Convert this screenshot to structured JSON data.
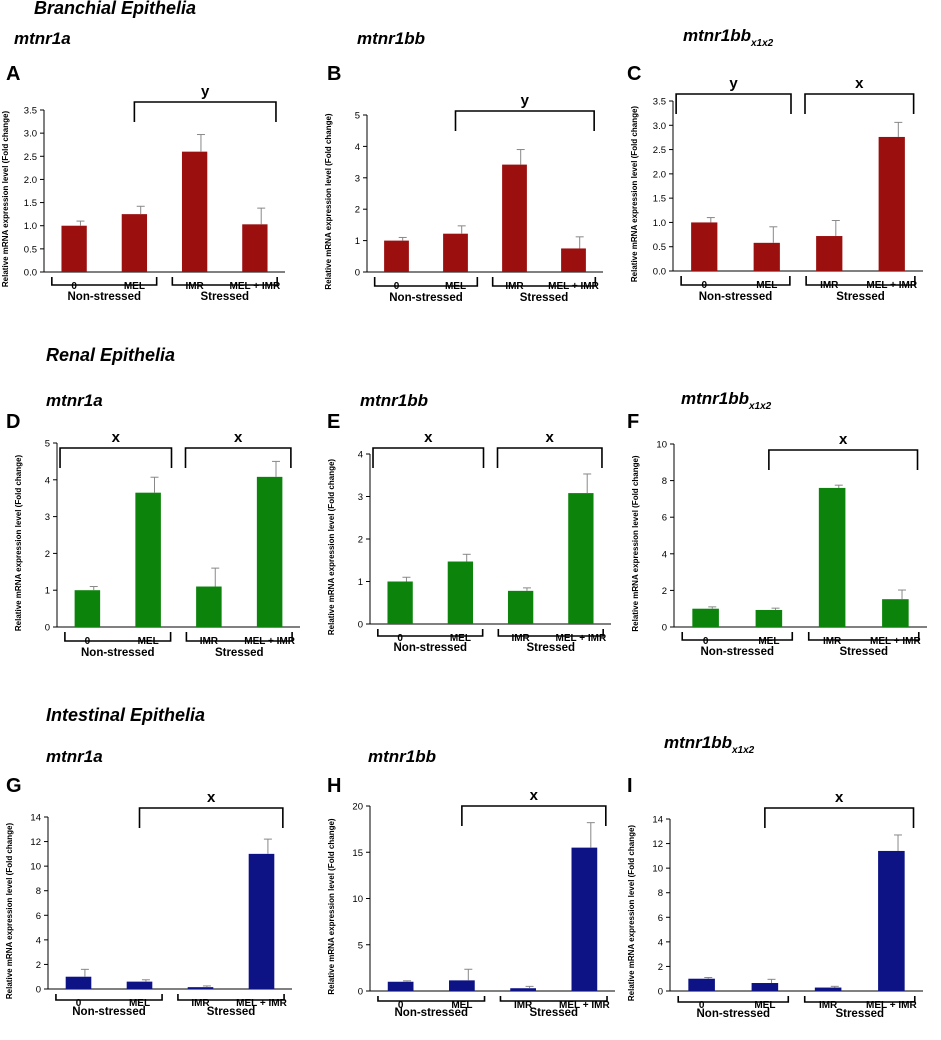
{
  "figure": {
    "sections": [
      {
        "id": "branchial",
        "title": "Branchial Epithelia"
      },
      {
        "id": "renal",
        "title": "Renal Epithelia"
      },
      {
        "id": "intestinal",
        "title": "Intestinal Epithelia"
      }
    ],
    "colors": {
      "branchial": "#9b0f0f",
      "renal": "#0c840c",
      "intestinal": "#0d1385",
      "error_bar": "#888888"
    },
    "group_labels": [
      "Non-stressed",
      "Stressed"
    ]
  },
  "chart_data": [
    {
      "panel": "A",
      "section": "branchial",
      "type": "bar",
      "gene": "mtnr1a",
      "gene_sub": "",
      "title": "mtnr1a",
      "ylabel": "Relative mRNA expression level (Fold change)",
      "xlabel": "",
      "categories": [
        "0",
        "MEL",
        "IMR",
        "MEL + IMR"
      ],
      "values": [
        1.0,
        1.25,
        2.6,
        1.03
      ],
      "errors": [
        0.1,
        0.17,
        0.37,
        0.35
      ],
      "ylim": [
        0,
        3.5
      ],
      "yticks": [
        "0.0",
        "0.5",
        "1.0",
        "1.5",
        "2.0",
        "2.5",
        "3.0",
        "3.5"
      ],
      "groups": [
        "Non-stressed",
        "Stressed"
      ],
      "brackets": [
        {
          "from": 1,
          "to": 3,
          "label": "y"
        }
      ]
    },
    {
      "panel": "B",
      "section": "branchial",
      "type": "bar",
      "gene": "mtnr1bb",
      "gene_sub": "",
      "title": "mtnr1bb",
      "ylabel": "Relative mRNA expression level (Fold change)",
      "xlabel": "",
      "categories": [
        "0",
        "MEL",
        "IMR",
        "MEL + IMR"
      ],
      "values": [
        1.0,
        1.22,
        3.42,
        0.75
      ],
      "errors": [
        0.1,
        0.25,
        0.48,
        0.37
      ],
      "ylim": [
        0,
        5
      ],
      "yticks": [
        "0",
        "1",
        "2",
        "3",
        "4",
        "5"
      ],
      "groups": [
        "Non-stressed",
        "Stressed"
      ],
      "brackets": [
        {
          "from": 1,
          "to": 3,
          "label": "y"
        }
      ]
    },
    {
      "panel": "C",
      "section": "branchial",
      "type": "bar",
      "gene": "mtnr1bb",
      "gene_sub": "x1x2",
      "title": "mtnr1bbx1x2",
      "ylabel": "Relative mRNA expression level (Fold change)",
      "xlabel": "",
      "categories": [
        "0",
        "MEL",
        "IMR",
        "MEL + IMR"
      ],
      "values": [
        1.0,
        0.58,
        0.72,
        2.76
      ],
      "errors": [
        0.1,
        0.33,
        0.32,
        0.3
      ],
      "ylim": [
        0,
        3.5
      ],
      "yticks": [
        "0.0",
        "0.5",
        "1.0",
        "1.5",
        "2.0",
        "2.5",
        "3.0",
        "3.5"
      ],
      "groups": [
        "Non-stressed",
        "Stressed"
      ],
      "brackets": [
        {
          "from": 0,
          "to": 1,
          "label": "y"
        },
        {
          "from": 1,
          "to": 3,
          "label": "x"
        }
      ]
    },
    {
      "panel": "D",
      "section": "renal",
      "type": "bar",
      "gene": "mtnr1a",
      "gene_sub": "",
      "title": "mtnr1a",
      "ylabel": "Relative mRNA expression level (Fold change)",
      "xlabel": "",
      "categories": [
        "0",
        "MEL",
        "IMR",
        "MEL + IMR"
      ],
      "values": [
        1.0,
        3.65,
        1.1,
        4.08
      ],
      "errors": [
        0.1,
        0.42,
        0.5,
        0.42
      ],
      "ylim": [
        0,
        5
      ],
      "yticks": [
        "0",
        "1",
        "2",
        "3",
        "4",
        "5"
      ],
      "groups": [
        "Non-stressed",
        "Stressed"
      ],
      "brackets": [
        {
          "from": 0,
          "to": 1,
          "label": "x"
        },
        {
          "from": 1,
          "to": 3,
          "label": "x"
        }
      ]
    },
    {
      "panel": "E",
      "section": "renal",
      "type": "bar",
      "gene": "mtnr1bb",
      "gene_sub": "",
      "title": "mtnr1bb",
      "ylabel": "Relative mRNA expression level (Fold change)",
      "xlabel": "",
      "categories": [
        "0",
        "MEL",
        "IMR",
        "MEL + IMR"
      ],
      "values": [
        1.0,
        1.47,
        0.78,
        3.08
      ],
      "errors": [
        0.1,
        0.17,
        0.07,
        0.45
      ],
      "ylim": [
        0,
        4
      ],
      "yticks": [
        "0",
        "1",
        "2",
        "3",
        "4"
      ],
      "groups": [
        "Non-stressed",
        "Stressed"
      ],
      "brackets": [
        {
          "from": 0,
          "to": 1,
          "label": "x"
        },
        {
          "from": 1,
          "to": 3,
          "label": "x"
        }
      ]
    },
    {
      "panel": "F",
      "section": "renal",
      "type": "bar",
      "gene": "mtnr1bb",
      "gene_sub": "x1x2",
      "title": "mtnr1bbx1x2",
      "ylabel": "Relative mRNA expression level (Fold change)",
      "xlabel": "",
      "categories": [
        "0",
        "MEL",
        "IMR",
        "MEL + IMR"
      ],
      "values": [
        1.0,
        0.93,
        7.6,
        1.52
      ],
      "errors": [
        0.1,
        0.1,
        0.15,
        0.5
      ],
      "ylim": [
        0,
        10
      ],
      "yticks": [
        "0",
        "2",
        "4",
        "6",
        "8",
        "10"
      ],
      "groups": [
        "Non-stressed",
        "Stressed"
      ],
      "brackets": [
        {
          "from": 1,
          "to": 3,
          "label": "x"
        }
      ]
    },
    {
      "panel": "G",
      "section": "intestinal",
      "type": "bar",
      "gene": "mtnr1a",
      "gene_sub": "",
      "title": "mtnr1a",
      "ylabel": "Relative mRNA expression level (Fold change)",
      "xlabel": "",
      "categories": [
        "0",
        "MEL",
        "IMR",
        "MEL + IMR"
      ],
      "values": [
        1.0,
        0.6,
        0.15,
        11.0
      ],
      "errors": [
        0.6,
        0.15,
        0.1,
        1.2
      ],
      "ylim": [
        0,
        14
      ],
      "yticks": [
        "0",
        "2",
        "4",
        "6",
        "8",
        "10",
        "12",
        "14"
      ],
      "groups": [
        "Non-stressed",
        "Stressed"
      ],
      "brackets": [
        {
          "from": 1,
          "to": 3,
          "label": "x"
        }
      ]
    },
    {
      "panel": "H",
      "section": "intestinal",
      "type": "bar",
      "gene": "mtnr1bb",
      "gene_sub": "",
      "title": "mtnr1bb",
      "ylabel": "Relative mRNA expression level (Fold change)",
      "xlabel": "",
      "categories": [
        "0",
        "MEL",
        "IMR",
        "MEL + IMR"
      ],
      "values": [
        1.0,
        1.15,
        0.3,
        15.5
      ],
      "errors": [
        0.1,
        1.2,
        0.2,
        2.7
      ],
      "ylim": [
        0,
        20
      ],
      "yticks": [
        "0",
        "5",
        "10",
        "15",
        "20"
      ],
      "groups": [
        "Non-stressed",
        "Stressed"
      ],
      "brackets": [
        {
          "from": 1,
          "to": 3,
          "label": "x"
        }
      ]
    },
    {
      "panel": "I",
      "section": "intestinal",
      "type": "bar",
      "gene": "mtnr1bb",
      "gene_sub": "x1x2",
      "title": "mtnr1bbx1x2",
      "ylabel": "Relative mRNA expression level (Fold change)",
      "xlabel": "",
      "categories": [
        "0",
        "MEL",
        "IMR",
        "MEL + IMR"
      ],
      "values": [
        1.0,
        0.65,
        0.28,
        11.4
      ],
      "errors": [
        0.1,
        0.3,
        0.1,
        1.3
      ],
      "ylim": [
        0,
        14
      ],
      "yticks": [
        "0",
        "2",
        "4",
        "6",
        "8",
        "10",
        "12",
        "14"
      ],
      "groups": [
        "Non-stressed",
        "Stressed"
      ],
      "brackets": [
        {
          "from": 1,
          "to": 3,
          "label": "x"
        }
      ]
    }
  ]
}
